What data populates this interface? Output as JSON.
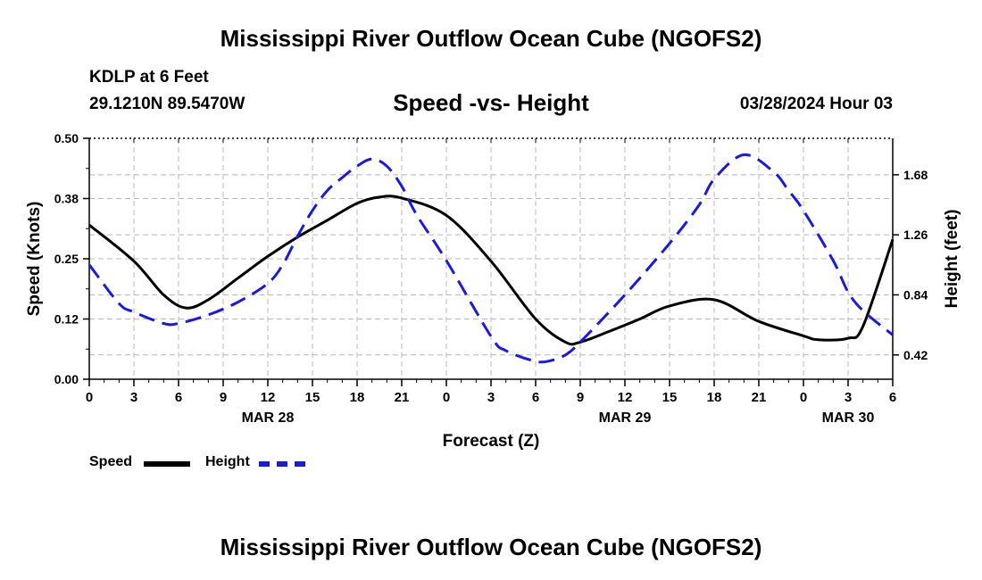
{
  "header": {
    "title": "Mississippi River Outflow Ocean Cube (NGOFS2)",
    "station": "KDLP at 6 Feet",
    "coords": "29.1210N  89.5470W",
    "subtitle": "Speed -vs- Height",
    "timestamp": "03/28/2024 Hour 03"
  },
  "footer": {
    "title": "Mississippi River Outflow Ocean Cube (NGOFS2)"
  },
  "legend": {
    "speed_label": "Speed",
    "height_label": "Height"
  },
  "chart_data": {
    "type": "line",
    "xlabel": "Forecast (Z)",
    "ylabel_left": "Speed (Knots)",
    "ylabel_right": "Height (feet)",
    "xlim": [
      0,
      54
    ],
    "ylim_left": [
      0,
      0.5
    ],
    "ylim_right": [
      0.25,
      1.935
    ],
    "x_ticks": [
      0,
      3,
      6,
      9,
      12,
      15,
      18,
      21,
      24,
      27,
      30,
      33,
      36,
      39,
      42,
      45,
      48,
      51,
      54
    ],
    "x_tick_labels": [
      "0",
      "3",
      "6",
      "9",
      "12",
      "15",
      "18",
      "21",
      "0",
      "3",
      "6",
      "9",
      "12",
      "15",
      "18",
      "21",
      "0",
      "3",
      "6"
    ],
    "date_labels": [
      {
        "x": 12,
        "label": "MAR 28"
      },
      {
        "x": 36,
        "label": "MAR 29"
      },
      {
        "x": 51,
        "label": "MAR 30"
      }
    ],
    "y_left_ticks": [
      0.0,
      0.125,
      0.25,
      0.375,
      0.5
    ],
    "y_left_tick_labels": [
      "0.00",
      "0.12",
      "0.25",
      "0.38",
      "0.50"
    ],
    "y_right_ticks": [
      0.42,
      0.84,
      1.26,
      1.68
    ],
    "y_right_tick_labels": [
      "0.42",
      "0.84",
      "1.26",
      "1.68"
    ],
    "grid": true,
    "series": [
      {
        "name": "Speed",
        "axis": "left",
        "color": "#000000",
        "style": "solid",
        "x": [
          0,
          3,
          5,
          6.5,
          8,
          10,
          12,
          14,
          16,
          18,
          19.5,
          21,
          24,
          27,
          30,
          32,
          33,
          35,
          37,
          39,
          42,
          45,
          48,
          49,
          51,
          52,
          54
        ],
        "y": [
          0.32,
          0.245,
          0.175,
          0.148,
          0.165,
          0.21,
          0.255,
          0.295,
          0.33,
          0.365,
          0.378,
          0.376,
          0.34,
          0.245,
          0.125,
          0.077,
          0.077,
          0.1,
          0.125,
          0.152,
          0.165,
          0.12,
          0.09,
          0.082,
          0.085,
          0.11,
          0.29
        ]
      },
      {
        "name": "Height",
        "axis": "right",
        "color": "#1a1adf",
        "style": "dashed",
        "x": [
          0,
          2,
          3,
          5,
          6,
          8,
          10,
          12,
          13,
          14,
          15,
          16,
          17,
          18,
          19,
          20,
          21,
          22,
          24,
          27,
          28,
          30,
          31,
          32,
          33,
          36,
          39,
          41,
          42,
          44,
          46,
          47,
          48,
          50,
          51,
          52,
          54
        ],
        "y": [
          1.05,
          0.78,
          0.72,
          0.64,
          0.64,
          0.7,
          0.79,
          0.92,
          1.05,
          1.25,
          1.43,
          1.57,
          1.66,
          1.74,
          1.79,
          1.74,
          1.6,
          1.4,
          1.08,
          0.55,
          0.45,
          0.375,
          0.38,
          0.42,
          0.51,
          0.84,
          1.2,
          1.47,
          1.65,
          1.82,
          1.7,
          1.57,
          1.43,
          1.08,
          0.86,
          0.73,
          0.56
        ]
      }
    ]
  }
}
